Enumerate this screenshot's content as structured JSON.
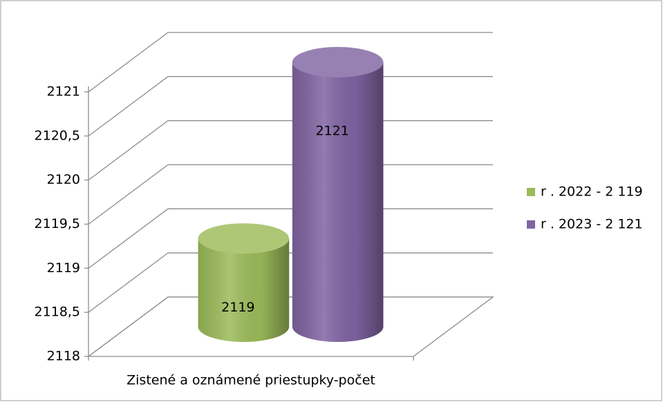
{
  "chart_data": {
    "type": "bar",
    "categories": [
      "Zistené a oznámené priestupky-počet"
    ],
    "series": [
      {
        "name": "r . 2022 - 2 119",
        "color": "#9bbb59",
        "values": [
          2119
        ]
      },
      {
        "name": "r . 2023 - 2 121",
        "color": "#8064a2",
        "values": [
          2121
        ]
      }
    ],
    "ylim": [
      2118,
      2121
    ],
    "yticks": [
      2118,
      {
        "value": 2118.5,
        "label": "2118,5"
      },
      2119,
      {
        "value": 2119.5,
        "label": "2119,5"
      },
      2120,
      {
        "value": 2120.5,
        "label": "2120,5"
      },
      2121
    ],
    "grid": true,
    "legend": "right"
  }
}
